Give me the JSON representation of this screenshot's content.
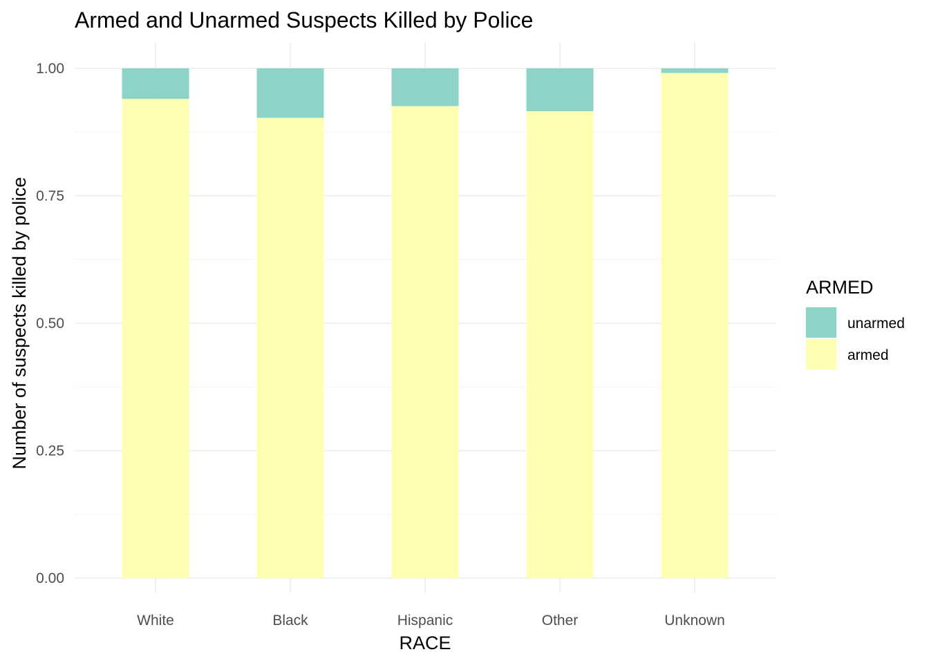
{
  "chart_data": {
    "type": "bar",
    "stacked": true,
    "title": "Armed and Unarmed Suspects Killed by Police",
    "xlabel": "RACE",
    "ylabel": "Number of suspects killed by police",
    "categories": [
      "White",
      "Black",
      "Hispanic",
      "Other",
      "Unknown"
    ],
    "ylim": [
      0,
      1
    ],
    "yticks": [
      "0.00",
      "0.25",
      "0.50",
      "0.75",
      "1.00"
    ],
    "ytick_values": [
      0,
      0.25,
      0.5,
      0.75,
      1.0
    ],
    "grid": true,
    "legend": {
      "title": "ARMED",
      "placement": "right",
      "entries": [
        "unarmed",
        "armed"
      ]
    },
    "series": [
      {
        "name": "armed",
        "color": "#FFFFB3",
        "values": [
          0.94,
          0.903,
          0.926,
          0.916,
          0.991
        ]
      },
      {
        "name": "unarmed",
        "color": "#8DD3C7",
        "values": [
          0.06,
          0.097,
          0.074,
          0.084,
          0.009
        ]
      }
    ]
  }
}
